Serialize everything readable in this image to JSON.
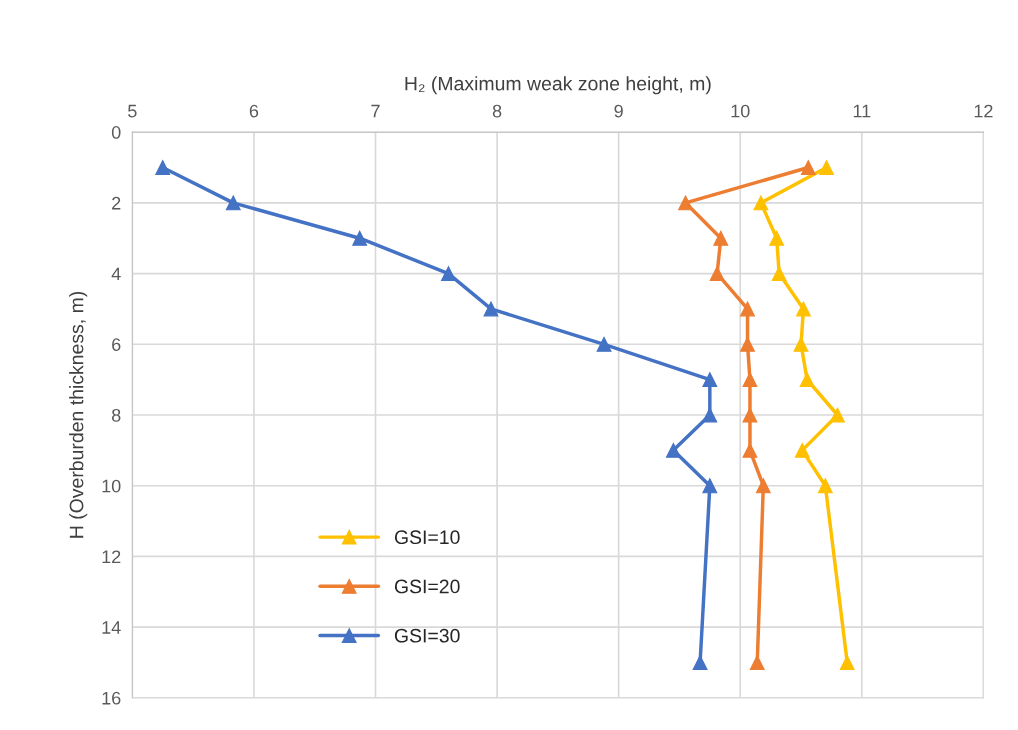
{
  "chart_data": {
    "type": "line",
    "xlabel": "H₂ (Maximum weak zone height, m)",
    "ylabel": "H (Overburden thickness, m)",
    "xlim": [
      5,
      12
    ],
    "xticks": [
      5,
      6,
      7,
      8,
      9,
      10,
      11,
      12
    ],
    "ylim": [
      16,
      0
    ],
    "yticks": [
      0,
      2,
      4,
      6,
      8,
      10,
      12,
      14,
      16
    ],
    "grid": true,
    "legend": "lower left",
    "marker": "triangle",
    "line_style": "solid",
    "series": [
      {
        "name": "GSI=10",
        "color": "#ffc000",
        "x": [
          10.71,
          10.17,
          10.3,
          10.32,
          10.52,
          10.5,
          10.55,
          10.8,
          10.51,
          10.7,
          10.88
        ],
        "values": [
          1,
          2,
          3,
          4,
          5,
          6,
          7,
          8,
          9,
          10,
          15
        ]
      },
      {
        "name": "GSI=20",
        "color": "#ed7d31",
        "x": [
          10.56,
          9.55,
          9.84,
          9.81,
          10.06,
          10.06,
          10.08,
          10.08,
          10.08,
          10.19,
          10.14
        ],
        "values": [
          1,
          2,
          3,
          4,
          5,
          6,
          7,
          8,
          9,
          10,
          15
        ]
      },
      {
        "name": "GSI=30",
        "color": "#4472c4",
        "x": [
          5.25,
          5.83,
          6.87,
          7.6,
          7.95,
          8.88,
          9.75,
          9.75,
          9.45,
          9.75,
          9.67
        ],
        "values": [
          1,
          2,
          3,
          4,
          5,
          6,
          7,
          8,
          9,
          10,
          15
        ]
      }
    ]
  }
}
